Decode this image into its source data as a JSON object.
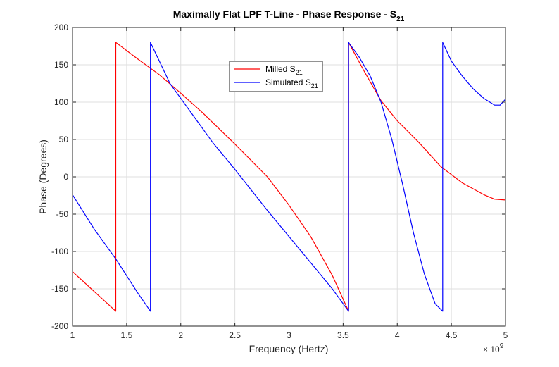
{
  "chart_data": {
    "type": "line",
    "title": "Maximally Flat LPF T-Line - Phase Response - S",
    "title_subscript": "21",
    "xlabel": "Frequency (Hertz)",
    "ylabel": "Phase (Degrees)",
    "x_exponent_base": "× 10",
    "x_exponent_power": "9",
    "xlim": [
      1,
      5
    ],
    "ylim": [
      -200,
      200
    ],
    "xticks": [
      1,
      1.5,
      2,
      2.5,
      3,
      3.5,
      4,
      4.5,
      5
    ],
    "xtick_labels": [
      "1",
      "1.5",
      "2",
      "2.5",
      "3",
      "3.5",
      "4",
      "4.5",
      "5"
    ],
    "yticks": [
      -200,
      -150,
      -100,
      -50,
      0,
      50,
      100,
      150,
      200
    ],
    "ytick_labels": [
      "-200",
      "-150",
      "-100",
      "-50",
      "0",
      "50",
      "100",
      "150",
      "200"
    ],
    "grid": true,
    "legend_position": "top-center",
    "series": [
      {
        "name": "Milled S",
        "name_subscript": "21",
        "color": "#ff0000",
        "x": [
          1.0,
          1.4,
          1.4,
          1.6,
          1.8,
          2.0,
          2.2,
          2.5,
          2.8,
          3.0,
          3.2,
          3.4,
          3.55,
          3.55,
          3.7,
          3.85,
          4.0,
          4.2,
          4.4,
          4.6,
          4.8,
          4.9,
          5.0
        ],
        "y": [
          -127,
          -180,
          180,
          158,
          137,
          112,
          86,
          44,
          0,
          -38,
          -80,
          -132,
          -180,
          180,
          140,
          102,
          75,
          46,
          14,
          -8,
          -24,
          -30,
          -31
        ]
      },
      {
        "name": "Simulated S",
        "name_subscript": "21",
        "color": "#0000ff",
        "x": [
          1.0,
          1.2,
          1.4,
          1.6,
          1.72,
          1.72,
          1.9,
          2.1,
          2.3,
          2.5,
          2.8,
          3.0,
          3.2,
          3.4,
          3.55,
          3.55,
          3.65,
          3.75,
          3.85,
          3.95,
          4.05,
          4.15,
          4.25,
          4.35,
          4.42,
          4.42,
          4.5,
          4.6,
          4.7,
          4.8,
          4.9,
          4.95,
          5.0
        ],
        "y": [
          -24,
          -70,
          -110,
          -155,
          -180,
          180,
          125,
          85,
          45,
          10,
          -45,
          -80,
          -115,
          -150,
          -180,
          180,
          160,
          135,
          100,
          50,
          -10,
          -75,
          -130,
          -170,
          -180,
          180,
          155,
          135,
          118,
          105,
          96,
          96,
          104
        ]
      }
    ]
  }
}
